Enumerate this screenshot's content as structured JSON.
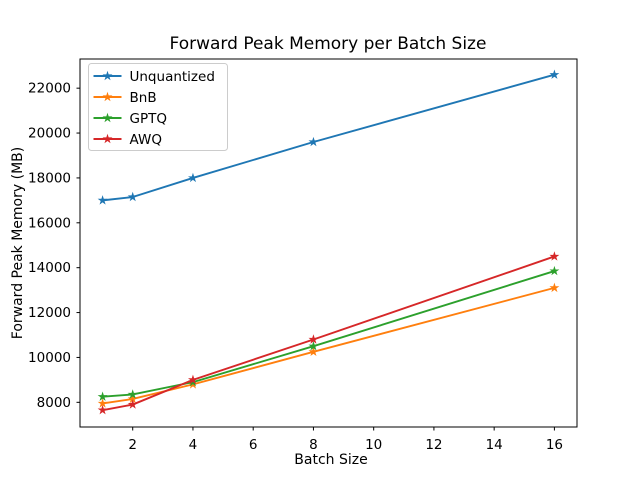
{
  "figure": {
    "background": "#ffffff",
    "text_color": "#000000",
    "spine_color": "#000000",
    "legend_border_color": "#cccccc",
    "legend_background": "#ffffff"
  },
  "chart_data": {
    "type": "line",
    "title": "Forward Peak Memory per Batch Size",
    "xlabel": "Batch Size",
    "ylabel": "Forward Peak Memory (MB)",
    "x": [
      1,
      2,
      4,
      8,
      16
    ],
    "series": [
      {
        "name": "Unquantized",
        "color": "#1f77b4",
        "marker": "star",
        "values": [
          17000,
          17150,
          18000,
          19600,
          22600
        ]
      },
      {
        "name": "BnB",
        "color": "#ff7f0e",
        "marker": "star",
        "values": [
          7950,
          8150,
          8800,
          10250,
          13100
        ]
      },
      {
        "name": "GPTQ",
        "color": "#2ca02c",
        "marker": "star",
        "values": [
          8250,
          8350,
          8900,
          10500,
          13850
        ]
      },
      {
        "name": "AWQ",
        "color": "#d62728",
        "marker": "star",
        "values": [
          7650,
          7900,
          9000,
          10800,
          14500
        ]
      }
    ],
    "xticks": [
      2,
      4,
      6,
      8,
      10,
      12,
      14,
      16
    ],
    "yticks": [
      8000,
      10000,
      12000,
      14000,
      16000,
      18000,
      20000,
      22000
    ],
    "xlim": [
      0.25,
      16.75
    ],
    "ylim": [
      6900,
      23300
    ],
    "x_scale": "linear",
    "grid": false,
    "legend_position": "upper left"
  }
}
